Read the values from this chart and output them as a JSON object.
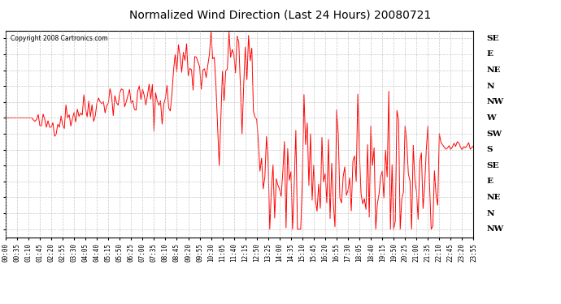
{
  "title": "Normalized Wind Direction (Last 24 Hours) 20080721",
  "copyright": "Copyright 2008 Cartronics.com",
  "background_color": "#ffffff",
  "plot_bg_color": "#ffffff",
  "grid_color": "#bbbbbb",
  "line_color": "#ff0000",
  "line_width": 0.7,
  "ytick_labels": [
    "SE",
    "E",
    "NE",
    "N",
    "NW",
    "W",
    "SW",
    "S",
    "SE",
    "E",
    "NE",
    "N",
    "NW"
  ],
  "ytick_values": [
    13,
    12,
    11,
    10,
    9,
    8,
    7,
    6,
    5,
    4,
    3,
    2,
    1
  ],
  "ylim": [
    0.5,
    13.5
  ],
  "xlim_min": 0,
  "xlim_max": 287,
  "figsize": [
    6.9,
    3.75
  ],
  "dpi": 100
}
